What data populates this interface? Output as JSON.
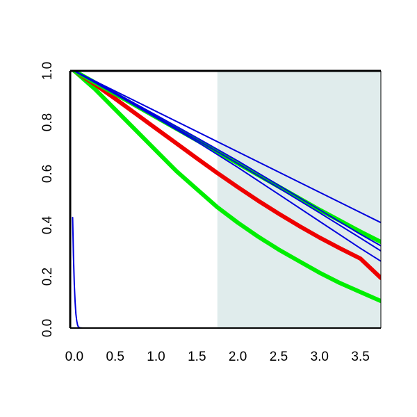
{
  "chart_data": {
    "type": "line",
    "title": "",
    "xlabel": "",
    "ylabel": "",
    "xlim": [
      -0.05,
      3.75
    ],
    "ylim": [
      0,
      1.0
    ],
    "x_ticks": [
      "0.0",
      "0.5",
      "1.0",
      "1.5",
      "2.0",
      "2.5",
      "3.0",
      "3.5"
    ],
    "y_ticks": [
      "0.0",
      "0.2",
      "0.4",
      "0.6",
      "0.8",
      "1.0"
    ],
    "grid": false,
    "legend": "none",
    "shaded_region": {
      "x_from": 1.75,
      "x_to": 3.75,
      "color": "#e0ecec"
    },
    "series": [
      {
        "color": "#00ee00",
        "width": "thick",
        "x": [
          0,
          0.25,
          0.5,
          0.75,
          1.0,
          1.25,
          1.5,
          1.75,
          2.0,
          2.25,
          2.5,
          2.75,
          3.0,
          3.25,
          3.5,
          3.75
        ],
        "y": [
          1.0,
          0.93,
          0.85,
          0.77,
          0.69,
          0.61,
          0.54,
          0.47,
          0.41,
          0.355,
          0.305,
          0.26,
          0.215,
          0.175,
          0.14,
          0.105
        ]
      },
      {
        "color": "#ee0000",
        "width": "thick",
        "x": [
          0,
          0.25,
          0.5,
          0.75,
          1.0,
          1.25,
          1.5,
          1.75,
          2.0,
          2.25,
          2.5,
          2.75,
          3.0,
          3.25,
          3.5,
          3.75
        ],
        "y": [
          1.0,
          0.948,
          0.892,
          0.834,
          0.776,
          0.718,
          0.66,
          0.603,
          0.548,
          0.495,
          0.445,
          0.397,
          0.352,
          0.31,
          0.27,
          0.195
        ]
      },
      {
        "color": "#00ee00",
        "width": "thick",
        "x": [
          0,
          0.5,
          1.0,
          1.5,
          2.0,
          2.5,
          3.0,
          3.5,
          3.75
        ],
        "y": [
          1.0,
          0.91,
          0.82,
          0.73,
          0.64,
          0.55,
          0.46,
          0.375,
          0.335
        ]
      },
      {
        "color": "#0000dd",
        "width": "thin",
        "x": [
          0,
          3.75
        ],
        "y": [
          1.0,
          0.41
        ]
      },
      {
        "color": "#0000dd",
        "width": "thin",
        "x": [
          0,
          0.5,
          1.0,
          1.5,
          2.0,
          2.5,
          3.0,
          3.5,
          3.75
        ],
        "y": [
          1.0,
          0.915,
          0.828,
          0.74,
          0.65,
          0.555,
          0.46,
          0.365,
          0.32
        ]
      },
      {
        "color": "#0000dd",
        "width": "thin",
        "x": [
          0,
          0.5,
          1.0,
          1.5,
          2.0,
          2.5,
          3.0,
          3.5,
          3.75
        ],
        "y": [
          1.0,
          0.912,
          0.822,
          0.732,
          0.64,
          0.545,
          0.448,
          0.35,
          0.3
        ]
      },
      {
        "color": "#0000dd",
        "width": "thin",
        "x": [
          0,
          0.5,
          1.0,
          1.5,
          2.0,
          2.5,
          3.0,
          3.5,
          3.75
        ],
        "y": [
          1.0,
          0.91,
          0.818,
          0.725,
          0.625,
          0.52,
          0.415,
          0.31,
          0.26
        ]
      },
      {
        "color": "#0000dd",
        "width": "thin",
        "x": [
          -0.02,
          -0.01,
          0.0,
          0.01,
          0.02,
          0.03,
          0.04,
          0.05,
          0.07,
          0.1,
          0.2,
          3.75
        ],
        "y": [
          0.43,
          0.28,
          0.17,
          0.1,
          0.055,
          0.028,
          0.012,
          0.004,
          0.001,
          0.0,
          0.0,
          0.0
        ]
      }
    ]
  }
}
